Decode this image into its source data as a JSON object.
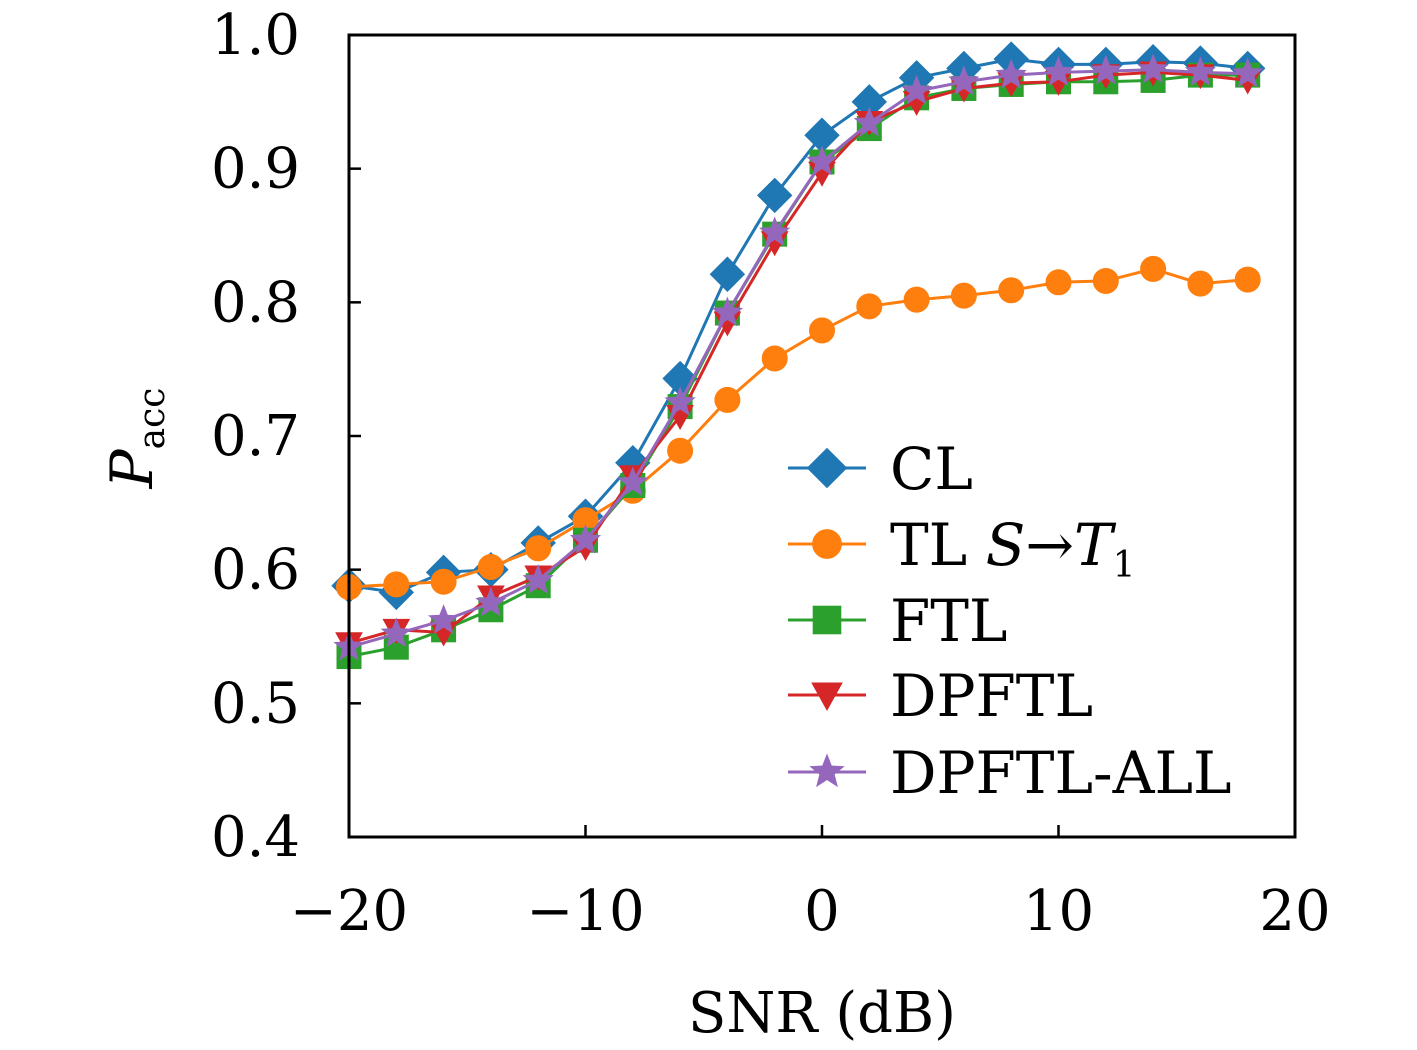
{
  "chart_data": {
    "type": "line",
    "xlabel": "SNR (dB)",
    "ylabel": "P",
    "ylabel_sub": "acc",
    "xlim": [
      -20,
      20
    ],
    "ylim": [
      0.4,
      1.0
    ],
    "xticks": [
      -20,
      -10,
      0,
      10,
      20
    ],
    "xtick_labels": [
      "−20",
      "−10",
      "0",
      "10",
      "20"
    ],
    "yticks": [
      0.4,
      0.5,
      0.6,
      0.7,
      0.8,
      0.9,
      1.0
    ],
    "ytick_labels": [
      "0.4",
      "0.5",
      "0.6",
      "0.7",
      "0.8",
      "0.9",
      "1.0"
    ],
    "grid": false,
    "legend_position": "lower-right",
    "x": [
      -20,
      -18,
      -16,
      -14,
      -12,
      -10,
      -8,
      -6,
      -4,
      -2,
      0,
      2,
      4,
      6,
      8,
      10,
      12,
      14,
      16,
      18
    ],
    "series": [
      {
        "name": "CL",
        "color": "#1f77b4",
        "marker": "diamond",
        "values": [
          0.588,
          0.583,
          0.598,
          0.6,
          0.62,
          0.64,
          0.68,
          0.743,
          0.821,
          0.88,
          0.925,
          0.95,
          0.968,
          0.975,
          0.982,
          0.978,
          0.978,
          0.98,
          0.979,
          0.975
        ]
      },
      {
        "name": "TL",
        "name_math": {
          "main": "TL ",
          "from": "S",
          "arrow": "→",
          "to": "T",
          "sub": "1"
        },
        "color": "#ff7f0e",
        "marker": "circle",
        "values": [
          0.587,
          0.589,
          0.591,
          0.602,
          0.616,
          0.637,
          0.659,
          0.689,
          0.727,
          0.758,
          0.779,
          0.797,
          0.802,
          0.805,
          0.809,
          0.815,
          0.816,
          0.825,
          0.814,
          0.817
        ]
      },
      {
        "name": "FTL",
        "color": "#2ca02c",
        "marker": "square",
        "values": [
          0.535,
          0.542,
          0.555,
          0.57,
          0.588,
          0.622,
          0.663,
          0.722,
          0.792,
          0.851,
          0.905,
          0.93,
          0.953,
          0.96,
          0.963,
          0.965,
          0.965,
          0.966,
          0.97,
          0.97
        ]
      },
      {
        "name": "DPFTL",
        "color": "#d62728",
        "marker": "triangle-down",
        "values": [
          0.545,
          0.555,
          0.553,
          0.58,
          0.595,
          0.617,
          0.67,
          0.715,
          0.785,
          0.845,
          0.897,
          0.935,
          0.95,
          0.96,
          0.964,
          0.965,
          0.97,
          0.972,
          0.97,
          0.966
        ]
      },
      {
        "name": "DPFTL-ALL",
        "color": "#9467bd",
        "marker": "star",
        "values": [
          0.542,
          0.552,
          0.562,
          0.575,
          0.592,
          0.622,
          0.665,
          0.725,
          0.792,
          0.852,
          0.905,
          0.934,
          0.958,
          0.965,
          0.97,
          0.972,
          0.973,
          0.974,
          0.972,
          0.971
        ]
      }
    ]
  }
}
